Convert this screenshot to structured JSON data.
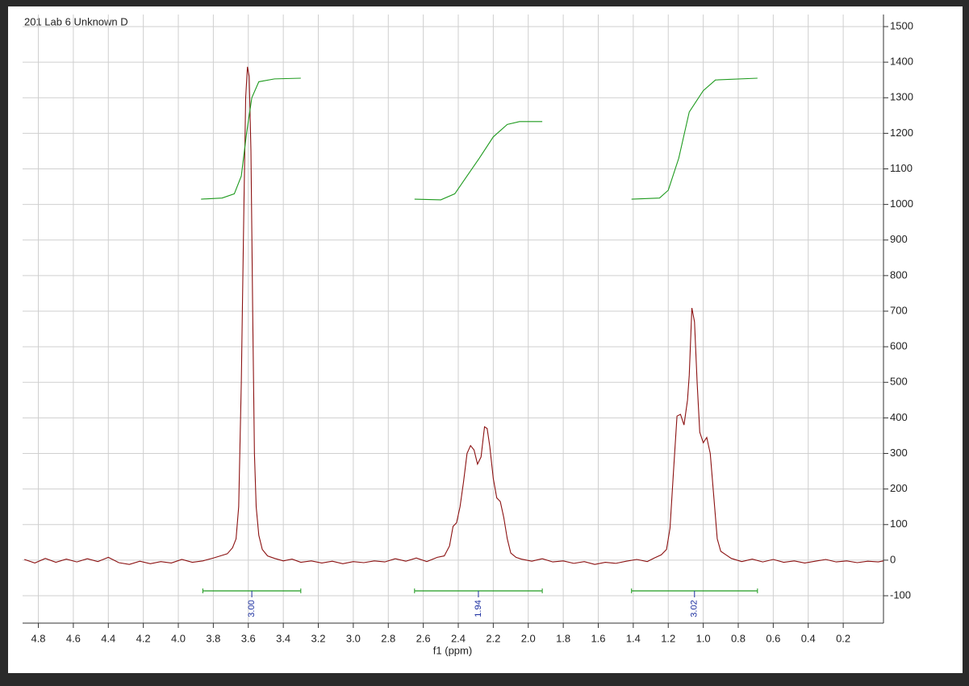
{
  "chart_data": {
    "type": "line",
    "title": "201 Lab 6 Unknown D",
    "x_label": "f1 (ppm)",
    "xlim": [
      4.89,
      -0.03
    ],
    "ylim": [
      -177,
      1534
    ],
    "grid": true,
    "xticks": [
      4.8,
      4.6,
      4.4,
      4.2,
      {
        "value": 4,
        "label": "4.0"
      },
      3.8,
      3.6,
      3.4,
      3.2,
      {
        "value": 3,
        "label": "3.0"
      },
      2.8,
      2.6,
      2.4,
      2.2,
      {
        "value": 2,
        "label": "2.0"
      },
      1.8,
      1.6,
      1.4,
      1.2,
      {
        "value": 1,
        "label": "1.0"
      },
      0.8,
      0.6,
      0.4,
      0.2
    ],
    "yticks": [
      -100,
      0,
      100,
      200,
      300,
      400,
      500,
      600,
      700,
      800,
      900,
      1000,
      1100,
      1200,
      1300,
      1400,
      1500
    ],
    "series": [
      {
        "color": "#8b1111",
        "x": [
          4.88,
          4.82,
          4.76,
          4.7,
          4.64,
          4.58,
          4.52,
          4.46,
          4.4,
          4.34,
          4.28,
          4.22,
          4.16,
          4.1,
          4.04,
          3.98,
          3.92,
          3.86,
          3.8,
          3.76,
          3.72,
          3.69,
          3.67,
          3.655,
          3.64,
          3.625,
          3.615,
          3.605,
          3.595,
          3.585,
          3.575,
          3.565,
          3.555,
          3.54,
          3.52,
          3.49,
          3.45,
          3.4,
          3.35,
          3.3,
          3.24,
          3.18,
          3.12,
          3.06,
          3.0,
          2.94,
          2.88,
          2.82,
          2.76,
          2.7,
          2.64,
          2.58,
          2.52,
          2.48,
          2.45,
          2.43,
          2.41,
          2.39,
          2.37,
          2.35,
          2.33,
          2.31,
          2.29,
          2.27,
          2.25,
          2.235,
          2.22,
          2.2,
          2.18,
          2.16,
          2.14,
          2.12,
          2.1,
          2.07,
          2.04,
          1.98,
          1.92,
          1.86,
          1.8,
          1.74,
          1.68,
          1.62,
          1.56,
          1.5,
          1.44,
          1.38,
          1.32,
          1.28,
          1.24,
          1.21,
          1.19,
          1.17,
          1.15,
          1.13,
          1.11,
          1.09,
          1.08,
          1.065,
          1.05,
          1.035,
          1.02,
          1.0,
          0.98,
          0.96,
          0.94,
          0.92,
          0.9,
          0.87,
          0.84,
          0.78,
          0.72,
          0.66,
          0.6,
          0.54,
          0.48,
          0.42,
          0.36,
          0.3,
          0.24,
          0.18,
          0.12,
          0.06,
          0.0,
          -0.03
        ],
        "values": [
          2,
          -8,
          5,
          -6,
          3,
          -5,
          4,
          -4,
          8,
          -7,
          -12,
          -3,
          -10,
          -4,
          -8,
          2,
          -6,
          -2,
          6,
          12,
          18,
          35,
          60,
          150,
          500,
          1000,
          1300,
          1387,
          1360,
          1150,
          700,
          300,
          150,
          70,
          30,
          12,
          5,
          -2,
          3,
          -6,
          -2,
          -8,
          -3,
          -10,
          -4,
          -7,
          -2,
          -5,
          4,
          -3,
          6,
          -4,
          8,
          12,
          40,
          95,
          105,
          150,
          220,
          300,
          322,
          310,
          270,
          290,
          375,
          370,
          320,
          230,
          175,
          165,
          120,
          60,
          20,
          8,
          3,
          -3,
          4,
          -5,
          -2,
          -9,
          -4,
          -12,
          -6,
          -9,
          -3,
          2,
          -4,
          6,
          15,
          30,
          90,
          250,
          405,
          410,
          380,
          450,
          520,
          709,
          670,
          500,
          360,
          330,
          345,
          300,
          180,
          60,
          25,
          15,
          5,
          -4,
          3,
          -5,
          2,
          -6,
          -2,
          -8,
          -3,
          2,
          -5,
          -2,
          -7,
          -3,
          -5,
          -2
        ]
      },
      {
        "color": "#1e9a1e",
        "x": [
          3.87,
          3.75,
          3.68,
          3.64,
          3.61,
          3.58,
          3.54,
          3.45,
          3.3
        ],
        "values": [
          1015,
          1018,
          1030,
          1080,
          1200,
          1300,
          1345,
          1353,
          1355
        ]
      },
      {
        "color": "#1e9a1e",
        "x": [
          2.65,
          2.5,
          2.42,
          2.35,
          2.28,
          2.2,
          2.12,
          2.05,
          1.92
        ],
        "values": [
          1015,
          1013,
          1030,
          1080,
          1130,
          1190,
          1225,
          1233,
          1233
        ]
      },
      {
        "color": "#1e9a1e",
        "x": [
          1.41,
          1.25,
          1.2,
          1.14,
          1.08,
          1.0,
          0.93,
          0.69
        ],
        "values": [
          1015,
          1018,
          1040,
          1130,
          1260,
          1320,
          1350,
          1355
        ]
      }
    ],
    "integrals": {
      "color": "#1e9a1e",
      "label_color": "#1c2fa0",
      "ranges": [
        [
          3.86,
          3.3
        ],
        [
          2.65,
          1.92
        ],
        [
          1.41,
          0.69
        ]
      ],
      "values": [
        3.0,
        1.94,
        3.02
      ],
      "value_labels": [
        "3.00",
        "1.94",
        "3.02"
      ]
    }
  }
}
